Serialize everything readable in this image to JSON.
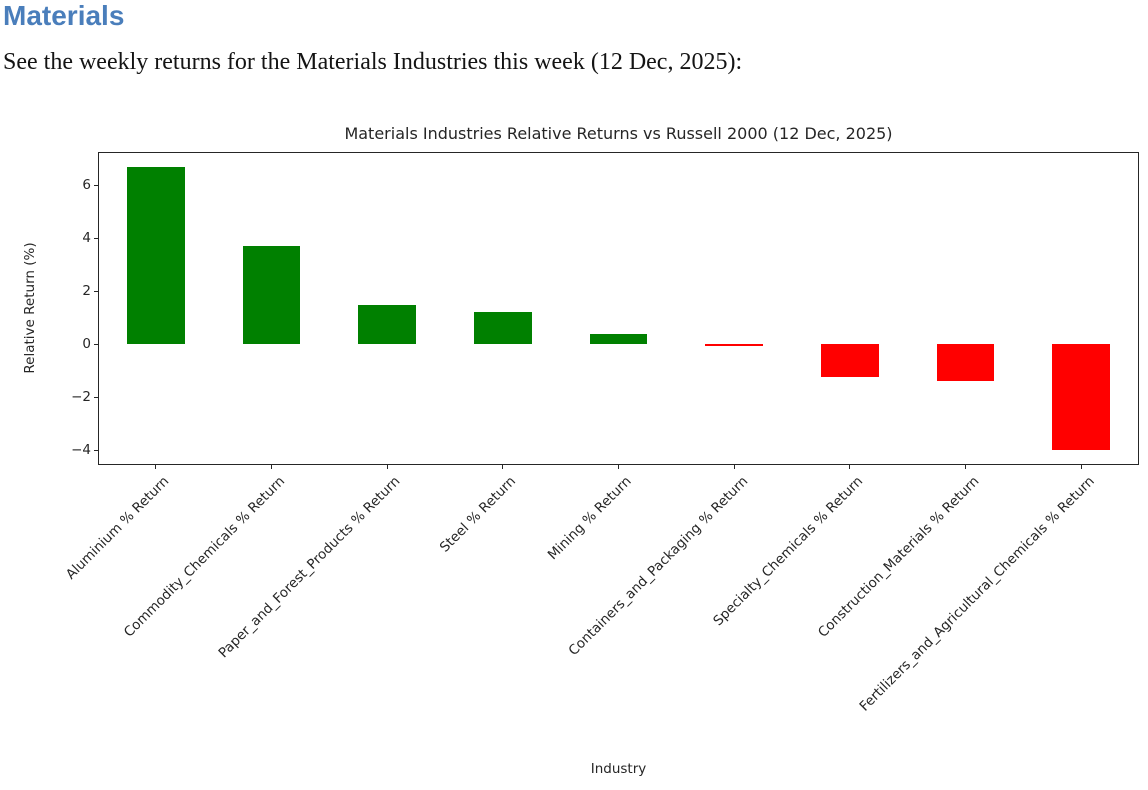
{
  "page": {
    "heading": "Materials",
    "intro": "See the weekly returns for the Materials Industries this week (12 Dec, 2025):"
  },
  "colors": {
    "heading_blue": "#4a7ebb",
    "positive_bar": "#008000",
    "negative_bar": "#ff0000",
    "axis": "#262626"
  },
  "chart_data": {
    "type": "bar",
    "title": "Materials Industries Relative Returns vs Russell 2000 (12 Dec, 2025)",
    "xlabel": "Industry",
    "ylabel": "Relative Return (%)",
    "categories": [
      "Aluminium % Return",
      "Commodity_Chemicals % Return",
      "Paper_and_Forest_Products % Return",
      "Steel % Return",
      "Mining % Return",
      "Containers_and_Packaging % Return",
      "Specialty_Chemicals % Return",
      "Construction_Materials % Return",
      "Fertilizers_and_Agricultural_Chemicals % Return"
    ],
    "values": [
      6.7,
      3.7,
      1.5,
      1.2,
      0.4,
      -0.05,
      -1.25,
      -1.4,
      -4.0
    ],
    "color_rule": "green when value >= 0, red when value < 0",
    "positive_color": "#008000",
    "negative_color": "#ff0000",
    "ylim": [
      -4.55,
      7.25
    ],
    "ytick_values": [
      6,
      4,
      2,
      0,
      -2,
      -4
    ],
    "ytick_labels": [
      "6",
      "4",
      "2",
      "0",
      "−2",
      "−4"
    ],
    "grid": false,
    "legend": false,
    "xticklabel_rotation_deg": 45
  }
}
